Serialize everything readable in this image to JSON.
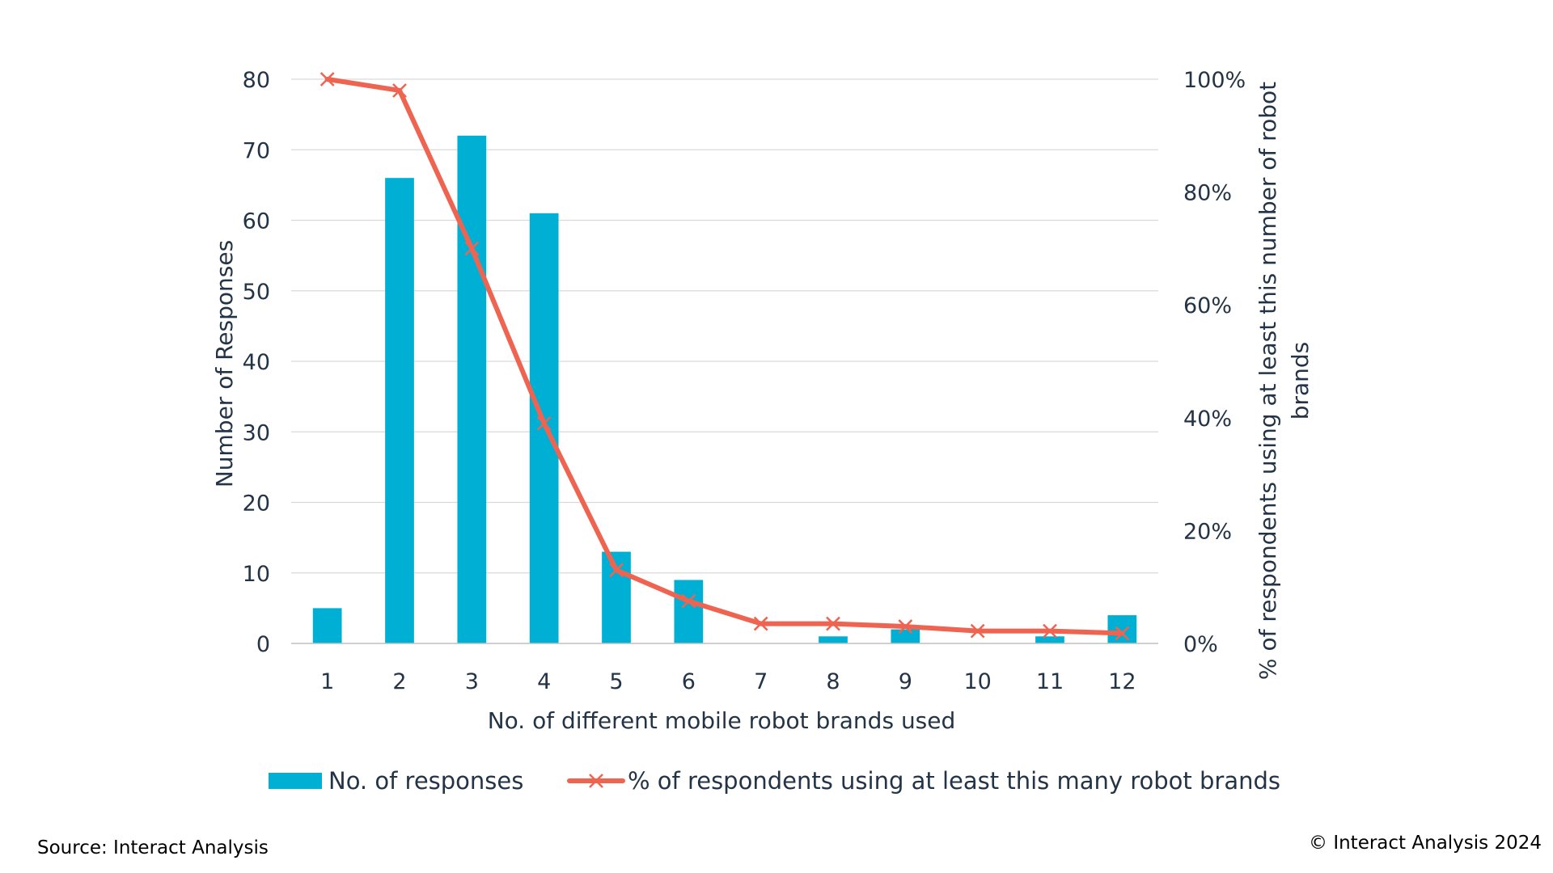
{
  "chart_data": {
    "type": "bar",
    "categories": [
      "1",
      "2",
      "3",
      "4",
      "5",
      "6",
      "7",
      "8",
      "9",
      "10",
      "11",
      "12"
    ],
    "series": [
      {
        "name": "No. of responses",
        "type": "bar",
        "axis": "left",
        "color": "#00b0d4",
        "values": [
          5,
          66,
          72,
          61,
          13,
          9,
          0,
          1,
          2,
          0,
          1,
          4
        ]
      },
      {
        "name": "% of respondents using at least this many robot brands",
        "type": "line",
        "axis": "right",
        "color": "#ef6451",
        "marker": "x",
        "values": [
          100,
          98,
          70,
          39,
          13,
          7.5,
          3.5,
          3.5,
          3,
          2.2,
          2.2,
          1.8
        ]
      }
    ],
    "xlabel": "No. of different mobile robot brands used",
    "ylabel": "Number of Responses",
    "y2label": "% of respondents using at least this number of robot brands",
    "ylim": [
      0,
      80
    ],
    "yticks": [
      "0",
      "10",
      "20",
      "30",
      "40",
      "50",
      "60",
      "70",
      "80"
    ],
    "y2lim": [
      0,
      100
    ],
    "y2ticks": [
      "0%",
      "20%",
      "40%",
      "60%",
      "80%",
      "100%"
    ],
    "grid": true,
    "legend_position": "bottom"
  },
  "footer": {
    "source": "Source: Interact Analysis",
    "copyright": "© Interact Analysis 2024"
  }
}
